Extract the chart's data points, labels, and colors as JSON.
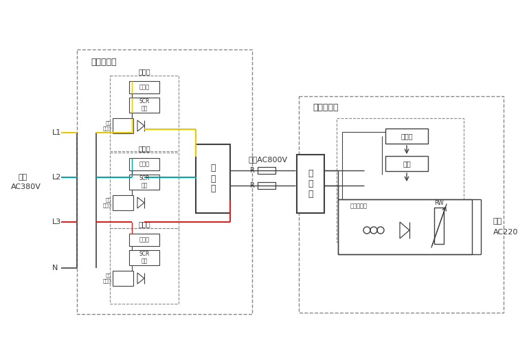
{
  "bg_color": "#ffffff",
  "line_color": "#404040",
  "dashed_color": "#888888",
  "text_color": "#333333",
  "line_yellow": "#e8c800",
  "line_cyan": "#00aaaa",
  "line_red": "#dd2020",
  "labels": {
    "source_gen": "电源发生器",
    "iso_conv": "隔离转换器",
    "input_line1": "输入",
    "input_line2": "AC380V",
    "output_line1": "输出",
    "output_line2": "AC220V",
    "trans_line": "传输AC800V",
    "L1": "L1",
    "L2": "L2",
    "L3": "L3",
    "N": "N",
    "boost": "升\n压\n器",
    "buck": "降\n压\n器",
    "R_top": "R",
    "R_bot": "R",
    "RW": "RW",
    "control_board": "控制板",
    "motor": "电机",
    "comp_xfmr_right": "补偿变压器",
    "stabilizer1": "稳压器",
    "stabilizer2": "稳压器",
    "stabilizer3": "稳压器",
    "ctrl1": "控制板",
    "scr1": "SCR\n模块",
    "comp1": "补偿\n变压器",
    "ctrl2": "控制板",
    "scr2": "SCR\n模块",
    "comp2": "补偿\n变压器",
    "ctrl3": "控制板",
    "scr3": "SCR\n模块",
    "comp3": "补偿\n变压器"
  }
}
